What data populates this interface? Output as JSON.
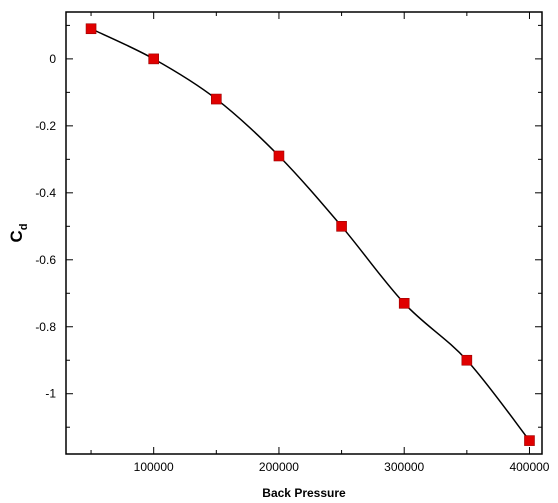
{
  "chart_data": {
    "type": "line",
    "xlabel": "Back Pressure",
    "ylabel_main": "C",
    "ylabel_sub": "d",
    "xlim": [
      30000,
      410000
    ],
    "ylim": [
      -1.18,
      0.14
    ],
    "x_ticks": [
      100000,
      200000,
      300000,
      400000
    ],
    "x_tick_labels": [
      "100000",
      "200000",
      "300000",
      "400000"
    ],
    "y_ticks": [
      0,
      -0.2,
      -0.4,
      -0.6,
      -0.8,
      -1
    ],
    "y_tick_labels": [
      "0",
      "-0.2",
      "-0.4",
      "-0.6",
      "-0.8",
      "-1"
    ],
    "grid": false,
    "series": [
      {
        "x": [
          50000,
          100000,
          150000,
          200000,
          250000,
          300000,
          350000,
          400000
        ],
        "y": [
          0.09,
          0.0,
          -0.12,
          -0.29,
          -0.5,
          -0.73,
          -0.9,
          -1.14
        ],
        "line_color": "#000000",
        "marker": "square",
        "marker_color": "#e00000"
      }
    ]
  }
}
